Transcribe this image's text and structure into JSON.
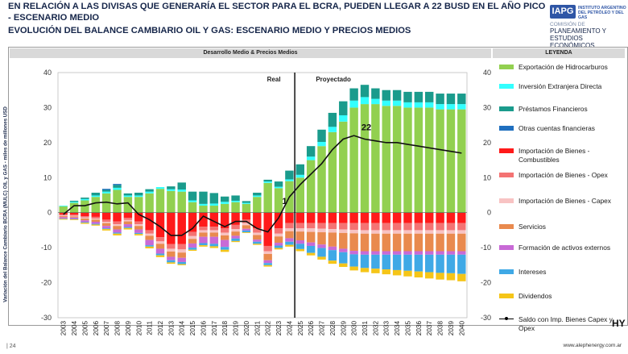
{
  "header": {
    "title_line1": "EN RELACIÓN A LAS DIVISAS QUE GENERARÍA EL SECTOR PARA EL BCRA, PUEDEN LLEGAR A 22 BUSD EN EL AÑO PICO - ESCENARIO MEDIO",
    "title_line2": "EVOLUCIÓN DEL BALANCE CAMBIARIO OIL Y GAS: ESCENARIO MEDIO Y PRECIOS MEDIOS"
  },
  "logo": {
    "badge": "IAPG",
    "name": "INSTITUTO ARGENTINO DEL PETRÓLEO Y DEL GAS",
    "sub1": "COMISIÓN DE",
    "sub2": "PLANEAMIENTO Y ESTUDIOS ECONÓMICOS"
  },
  "footer": {
    "page": "| 24",
    "url": "www.alephenergy.com.ar",
    "mark": "HY"
  },
  "colors": {
    "exportacion": "#92d050",
    "ied": "#33ffff",
    "prestamos": "#1a9b8c",
    "otras": "#1f6fbf",
    "combustibles": "#ff1a1a",
    "opex": "#f47373",
    "capex": "#f8c3c3",
    "servicios": "#e98a4e",
    "formacion": "#c86ad6",
    "intereses": "#3fa9e6",
    "dividendos": "#f5c518"
  },
  "chart_data": {
    "type": "bar",
    "panel_title": "Desarrollo Medio & Precios Medios",
    "legend_title": "LEYENDA",
    "ylabel": "Variación del Balance Cambiario BCRA (MULC) OIL y GAS - miles de millones USD",
    "ylim": [
      -30,
      40
    ],
    "yticks": [
      -30,
      -20,
      -10,
      0,
      10,
      20,
      30,
      40
    ],
    "legend_position": "right",
    "annotations": {
      "real": "Real",
      "proyectado": "Proyectado",
      "marker_2024": "1",
      "peak": "22"
    },
    "categories": [
      "2003",
      "2004",
      "2005",
      "2006",
      "2007",
      "2008",
      "2009",
      "2010",
      "2011",
      "2012",
      "2013",
      "2014",
      "2015",
      "2016",
      "2017",
      "2018",
      "2019",
      "2020",
      "2021",
      "2022",
      "2023",
      "2024",
      "2025",
      "2026",
      "2027",
      "2028",
      "2029",
      "2030",
      "2031",
      "2032",
      "2033",
      "2034",
      "2035",
      "2036",
      "2037",
      "2038",
      "2039",
      "2040"
    ],
    "series": [
      {
        "key": "exportacion",
        "name": "Exportación de Hidrocarburos",
        "values": [
          1.8,
          2.8,
          3.5,
          4.5,
          5.5,
          6.5,
          4.5,
          4.5,
          5.5,
          6.8,
          6.2,
          6.0,
          3.0,
          2.0,
          2.0,
          2.5,
          3.0,
          2.5,
          4.5,
          8.5,
          7.0,
          9.0,
          10.0,
          15.0,
          19.0,
          23.0,
          26.0,
          30.0,
          31.0,
          31.0,
          30.5,
          30.5,
          30.0,
          30.0,
          30.0,
          29.5,
          29.5,
          29.5
        ]
      },
      {
        "key": "ied",
        "name": "Inversión Extranjera Directa",
        "values": [
          0.2,
          0.3,
          0.4,
          0.4,
          0.5,
          0.6,
          0.4,
          0.4,
          0.5,
          0.5,
          0.5,
          0.6,
          0.5,
          0.5,
          0.6,
          0.6,
          0.4,
          0.3,
          0.4,
          0.4,
          0.4,
          0.5,
          0.8,
          1.0,
          1.2,
          1.5,
          1.8,
          2.0,
          2.0,
          1.5,
          1.5,
          1.5,
          1.5,
          1.5,
          1.5,
          1.5,
          1.5,
          1.5
        ]
      },
      {
        "key": "prestamos",
        "name": "Préstamos Financieros",
        "values": [
          0,
          0.3,
          0.4,
          0.8,
          0.5,
          0.8,
          0.6,
          0.8,
          0.7,
          0,
          0.8,
          2.0,
          2.5,
          3.5,
          3.0,
          1.5,
          1.5,
          0.5,
          0.8,
          0.5,
          1.5,
          2.5,
          3.0,
          3.0,
          3.5,
          4.0,
          4.0,
          3.5,
          3.5,
          3.0,
          3.0,
          3.0,
          3.0,
          3.0,
          3.0,
          3.0,
          3.0,
          3.0
        ]
      },
      {
        "key": "otras",
        "name": "Otras cuentas financieras",
        "values": [
          0,
          0,
          0,
          0,
          0.3,
          0.3,
          0,
          0,
          0,
          0,
          0,
          0,
          0,
          0,
          0,
          0,
          0,
          0,
          0,
          0,
          0,
          0,
          0,
          0,
          0,
          0,
          0,
          0,
          0,
          0,
          0,
          0,
          0,
          0,
          0,
          0,
          0,
          0
        ]
      },
      {
        "key": "combustibles",
        "name": "Importación de Bienes - Combustibles",
        "values": [
          -0.5,
          -0.6,
          -1.0,
          -1.2,
          -2.0,
          -2.5,
          -1.5,
          -2.5,
          -5.0,
          -7.0,
          -9.0,
          -9.0,
          -5.5,
          -4.0,
          -4.0,
          -4.5,
          -3.5,
          -2.0,
          -4.5,
          -9.5,
          -4.5,
          -3.0,
          -3.0,
          -3.0,
          -3.0,
          -3.0,
          -3.0,
          -3.0,
          -3.0,
          -3.0,
          -3.0,
          -3.0,
          -3.0,
          -3.0,
          -3.0,
          -3.0,
          -3.0,
          -3.0
        ]
      },
      {
        "key": "opex",
        "name": "Importación de Bienes - Opex",
        "values": [
          -0.3,
          -0.3,
          -0.4,
          -0.5,
          -0.6,
          -0.8,
          -0.6,
          -0.8,
          -1.0,
          -1.2,
          -1.3,
          -1.5,
          -1.2,
          -1.0,
          -1.0,
          -1.2,
          -1.2,
          -1.0,
          -1.2,
          -1.5,
          -1.5,
          -1.5,
          -1.5,
          -1.5,
          -1.6,
          -1.7,
          -1.8,
          -1.9,
          -2.0,
          -2.0,
          -2.0,
          -2.0,
          -2.0,
          -2.0,
          -2.0,
          -2.0,
          -2.0,
          -2.0
        ]
      },
      {
        "key": "capex",
        "name": "Importación de Bienes - Capex",
        "values": [
          -0.2,
          -0.2,
          -0.3,
          -0.3,
          -0.4,
          -0.5,
          -0.4,
          -0.5,
          -0.6,
          -0.7,
          -0.8,
          -0.9,
          -0.8,
          -0.7,
          -0.7,
          -0.8,
          -0.7,
          -0.6,
          -0.7,
          -0.8,
          -0.8,
          -0.8,
          -0.9,
          -1.0,
          -1.0,
          -1.0,
          -1.0,
          -1.0,
          -1.0,
          -1.0,
          -1.0,
          -1.0,
          -1.0,
          -1.0,
          -1.0,
          -1.0,
          -1.0,
          -1.0
        ]
      },
      {
        "key": "servicios",
        "name": "Servicios",
        "values": [
          -0.3,
          -0.3,
          -0.5,
          -0.6,
          -0.8,
          -1.0,
          -0.8,
          -1.0,
          -1.2,
          -1.4,
          -1.5,
          -1.5,
          -1.3,
          -1.2,
          -1.2,
          -1.3,
          -1.2,
          -1.0,
          -1.3,
          -1.8,
          -1.8,
          -2.0,
          -2.5,
          -3.0,
          -3.5,
          -4.0,
          -4.5,
          -5.0,
          -5.0,
          -5.0,
          -5.0,
          -5.0,
          -5.0,
          -5.0,
          -5.0,
          -5.0,
          -5.0,
          -5.0
        ]
      },
      {
        "key": "formacion",
        "name": "Formación de activos externos",
        "values": [
          -0.4,
          -0.4,
          -0.5,
          -0.6,
          -0.7,
          -0.9,
          -0.8,
          -1.0,
          -1.5,
          -1.4,
          -1.0,
          -1.2,
          -1.2,
          -1.8,
          -2.0,
          -2.0,
          -0.8,
          -0.5,
          -0.6,
          -0.8,
          -0.8,
          -1.0,
          -1.0,
          -1.0,
          -1.0,
          -1.0,
          -1.0,
          -1.0,
          -1.0,
          -1.0,
          -1.0,
          -1.0,
          -1.0,
          -1.0,
          -1.0,
          -1.0,
          -1.0,
          -1.0
        ]
      },
      {
        "key": "intereses",
        "name": "Intereses",
        "values": [
          -0.1,
          -0.1,
          -0.2,
          -0.2,
          -0.2,
          -0.3,
          -0.3,
          -0.3,
          -0.4,
          -0.5,
          -0.6,
          -0.6,
          -0.6,
          -0.6,
          -0.7,
          -0.8,
          -0.7,
          -0.5,
          -0.6,
          -0.6,
          -0.7,
          -0.9,
          -1.5,
          -2.0,
          -2.5,
          -3.0,
          -3.2,
          -3.5,
          -3.8,
          -4.0,
          -4.2,
          -4.4,
          -4.6,
          -4.8,
          -5.0,
          -5.2,
          -5.3,
          -5.5
        ]
      },
      {
        "key": "dividendos",
        "name": "Dividendos",
        "values": [
          -0.2,
          -0.2,
          -0.3,
          -0.3,
          -0.4,
          -0.5,
          -0.4,
          -0.4,
          -0.5,
          -0.5,
          -0.4,
          -0.3,
          -0.3,
          -0.4,
          -0.5,
          -0.6,
          -0.3,
          -0.2,
          -0.3,
          -0.4,
          -0.4,
          -0.5,
          -0.6,
          -0.7,
          -0.8,
          -0.9,
          -1.0,
          -1.1,
          -1.2,
          -1.3,
          -1.4,
          -1.5,
          -1.6,
          -1.7,
          -1.8,
          -1.9,
          -2.0,
          -2.1
        ]
      }
    ],
    "line": {
      "name": "Saldo con Imp. Bienes Capex y Opex",
      "values": [
        -0.5,
        2.0,
        2.0,
        2.8,
        3.0,
        2.5,
        2.8,
        -0.5,
        -2.0,
        -4.0,
        -6.5,
        -6.5,
        -4.5,
        -1.0,
        -2.5,
        -4.0,
        -2.5,
        -2.5,
        -4.5,
        -5.5,
        -1.5,
        4.5,
        8.0,
        11.0,
        14.0,
        18.0,
        21.0,
        22.0,
        21.0,
        20.5,
        20.0,
        20.0,
        19.5,
        19.0,
        18.5,
        18.0,
        17.5,
        17.0
      ]
    }
  },
  "legend_items": [
    {
      "key": "exportacion",
      "label": "Exportación de Hidrocarburos"
    },
    {
      "key": "ied",
      "label": "Inversión Extranjera Directa"
    },
    {
      "key": "prestamos",
      "label": "Préstamos Financieros"
    },
    {
      "key": "otras",
      "label": "Otras cuentas financieras"
    },
    {
      "key": "combustibles",
      "label": "Importación de Bienes - Combustibles"
    },
    {
      "key": "opex",
      "label": "Importación de Bienes - Opex"
    },
    {
      "key": "capex",
      "label": "Importación de Bienes - Capex"
    },
    {
      "key": "servicios",
      "label": "Servicios"
    },
    {
      "key": "formacion",
      "label": "Formación de activos externos"
    },
    {
      "key": "intereses",
      "label": "Intereses"
    },
    {
      "key": "dividendos",
      "label": "Dividendos"
    },
    {
      "key": "line",
      "label": "Saldo con Imp. Bienes Capex y Opex"
    }
  ]
}
